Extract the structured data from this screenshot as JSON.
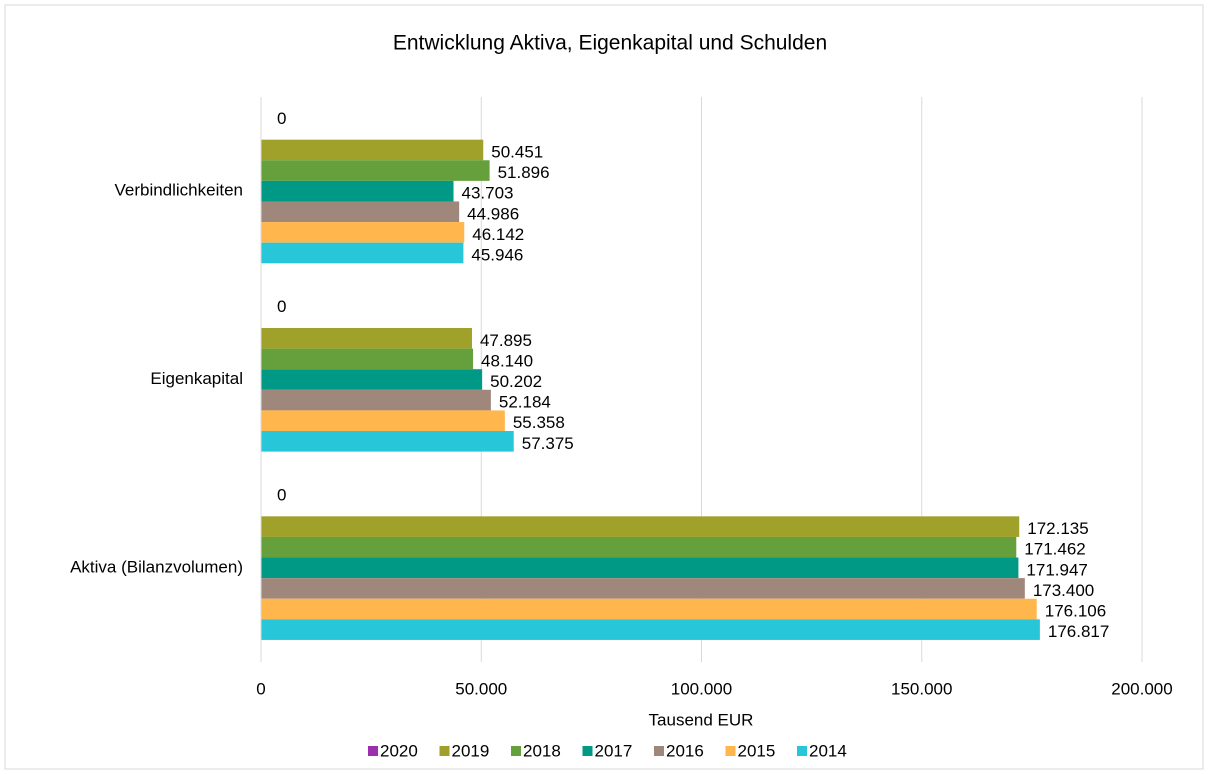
{
  "chart_data": {
    "type": "bar",
    "orientation": "horizontal",
    "title": "Entwicklung Aktiva, Eigenkapital und Schulden",
    "x_label": "Tausend EUR",
    "categories": [
      "Verbindlichkeiten",
      "Eigenkapital",
      "Aktiva (Bilanzvolumen)"
    ],
    "series": [
      {
        "name": "2020",
        "color": "#9b2fae",
        "values": [
          0,
          0,
          0
        ],
        "value_labels": [
          "0",
          "0",
          "0"
        ]
      },
      {
        "name": "2019",
        "color": "#9fa12a",
        "values": [
          50451,
          47895,
          172135
        ],
        "value_labels": [
          "50.451",
          "47.895",
          "172.135"
        ]
      },
      {
        "name": "2018",
        "color": "#66a03c",
        "values": [
          51896,
          48140,
          171462
        ],
        "value_labels": [
          "51.896",
          "48.140",
          "171.462"
        ]
      },
      {
        "name": "2017",
        "color": "#009985",
        "values": [
          43703,
          50202,
          171947
        ],
        "value_labels": [
          "43.703",
          "50.202",
          "171.947"
        ]
      },
      {
        "name": "2016",
        "color": "#a0877b",
        "values": [
          44986,
          52184,
          173400
        ],
        "value_labels": [
          "44.986",
          "52.184",
          "173.400"
        ]
      },
      {
        "name": "2015",
        "color": "#ffb64d",
        "values": [
          46142,
          55358,
          176106
        ],
        "value_labels": [
          "46.142",
          "55.358",
          "176.106"
        ]
      },
      {
        "name": "2014",
        "color": "#27c6d9",
        "values": [
          45946,
          57375,
          176817
        ],
        "value_labels": [
          "45.946",
          "57.375",
          "176.817"
        ]
      }
    ],
    "xlim": [
      0,
      200000
    ],
    "xticks": [
      0,
      {
        "value": 50000,
        "label": "50.000"
      },
      {
        "value": 100000,
        "label": "100.000"
      },
      {
        "value": 150000,
        "label": "150.000"
      },
      {
        "value": 200000,
        "label": "200.000"
      }
    ],
    "grid": true,
    "legend": "bottom"
  }
}
